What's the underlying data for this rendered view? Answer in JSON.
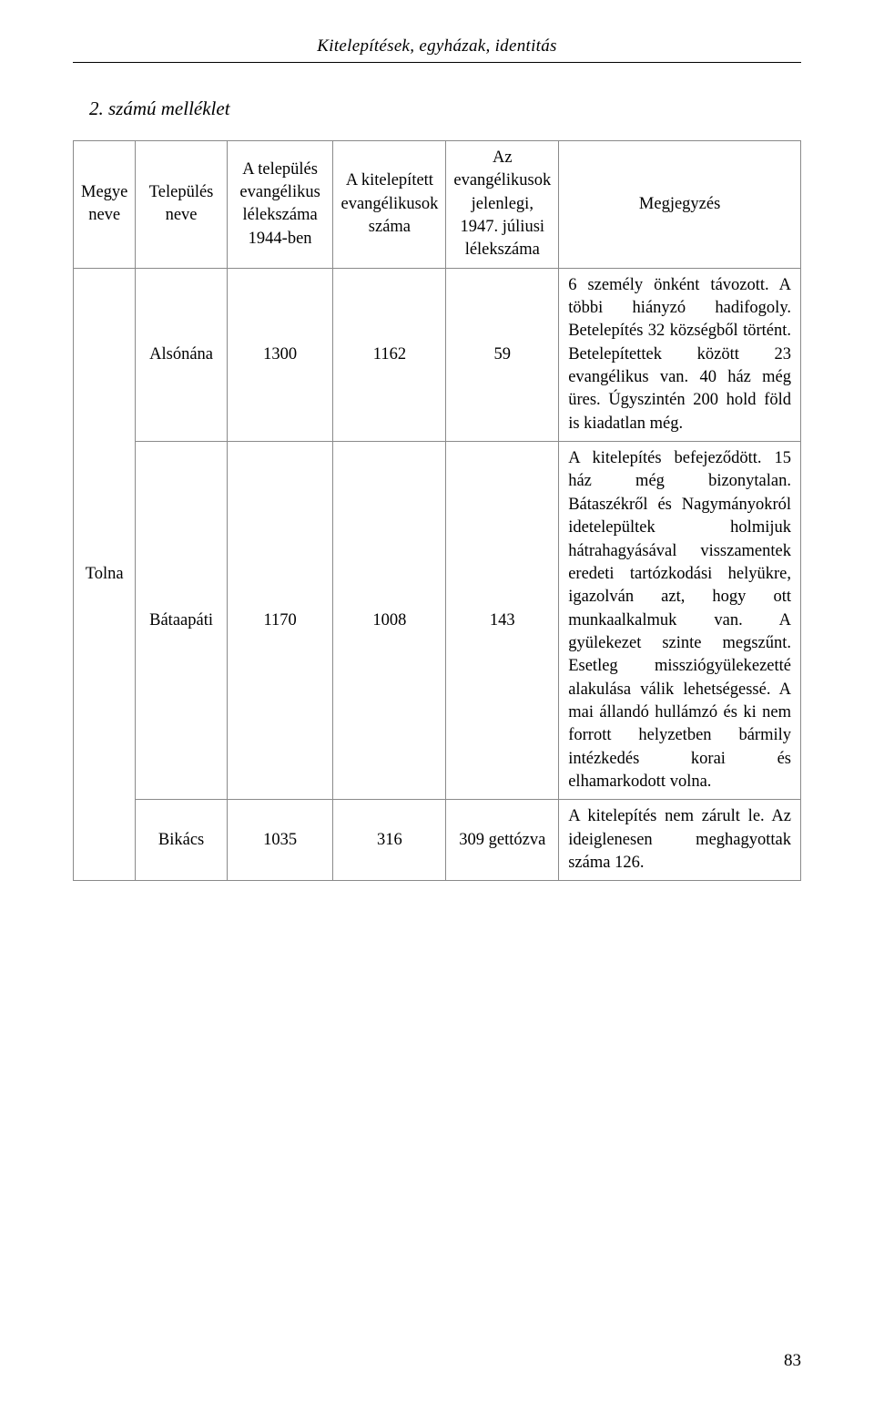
{
  "page_header": "Kitelepítések, egyházak, identitás",
  "subtitle": "2. számú melléklet",
  "columns": {
    "c0": "Megye neve",
    "c1": "Település neve",
    "c2": "A település evangélikus lélekszáma 1944-ben",
    "c3": "A kitelepített evangélikusok száma",
    "c4": "Az evangélikusok jelenlegi, 1947. júliusi lélekszáma",
    "c5": "Megjegyzés"
  },
  "county": "Tolna",
  "rows": [
    {
      "settlement": "Alsónána",
      "pop1944": "1300",
      "deported": "1162",
      "pop1947": "59",
      "note": "6 személy önként távozott. A többi hiányzó hadifogoly. Betelepítés 32 községből történt. Betelepítettek között 23 evangélikus van. 40 ház még üres. Úgyszintén 200 hold föld is kiadatlan még."
    },
    {
      "settlement": "Bátaapáti",
      "pop1944": "1170",
      "deported": "1008",
      "pop1947": "143",
      "note": "A kitelepítés befejeződött. 15 ház még bizonytalan. Bátaszékről és Nagymányokról idetelepültek holmijuk hátrahagyásával visszamentek eredeti tartózkodási helyükre, igazolván azt, hogy ott munkaalkalmuk van. A gyülekezet szinte megszűnt. Esetleg missziógyülekezetté alakulása válik lehetségessé. A mai állandó hullámzó és ki nem forrott helyzetben bármily intézkedés korai és elhamarkodott volna."
    },
    {
      "settlement": "Bikács",
      "pop1944": "1035",
      "deported": "316",
      "pop1947": "309 gettózva",
      "note": "A kitelepítés nem zárult le. Az ideiglenesen meghagyottak száma 126."
    }
  ],
  "page_number": "83"
}
